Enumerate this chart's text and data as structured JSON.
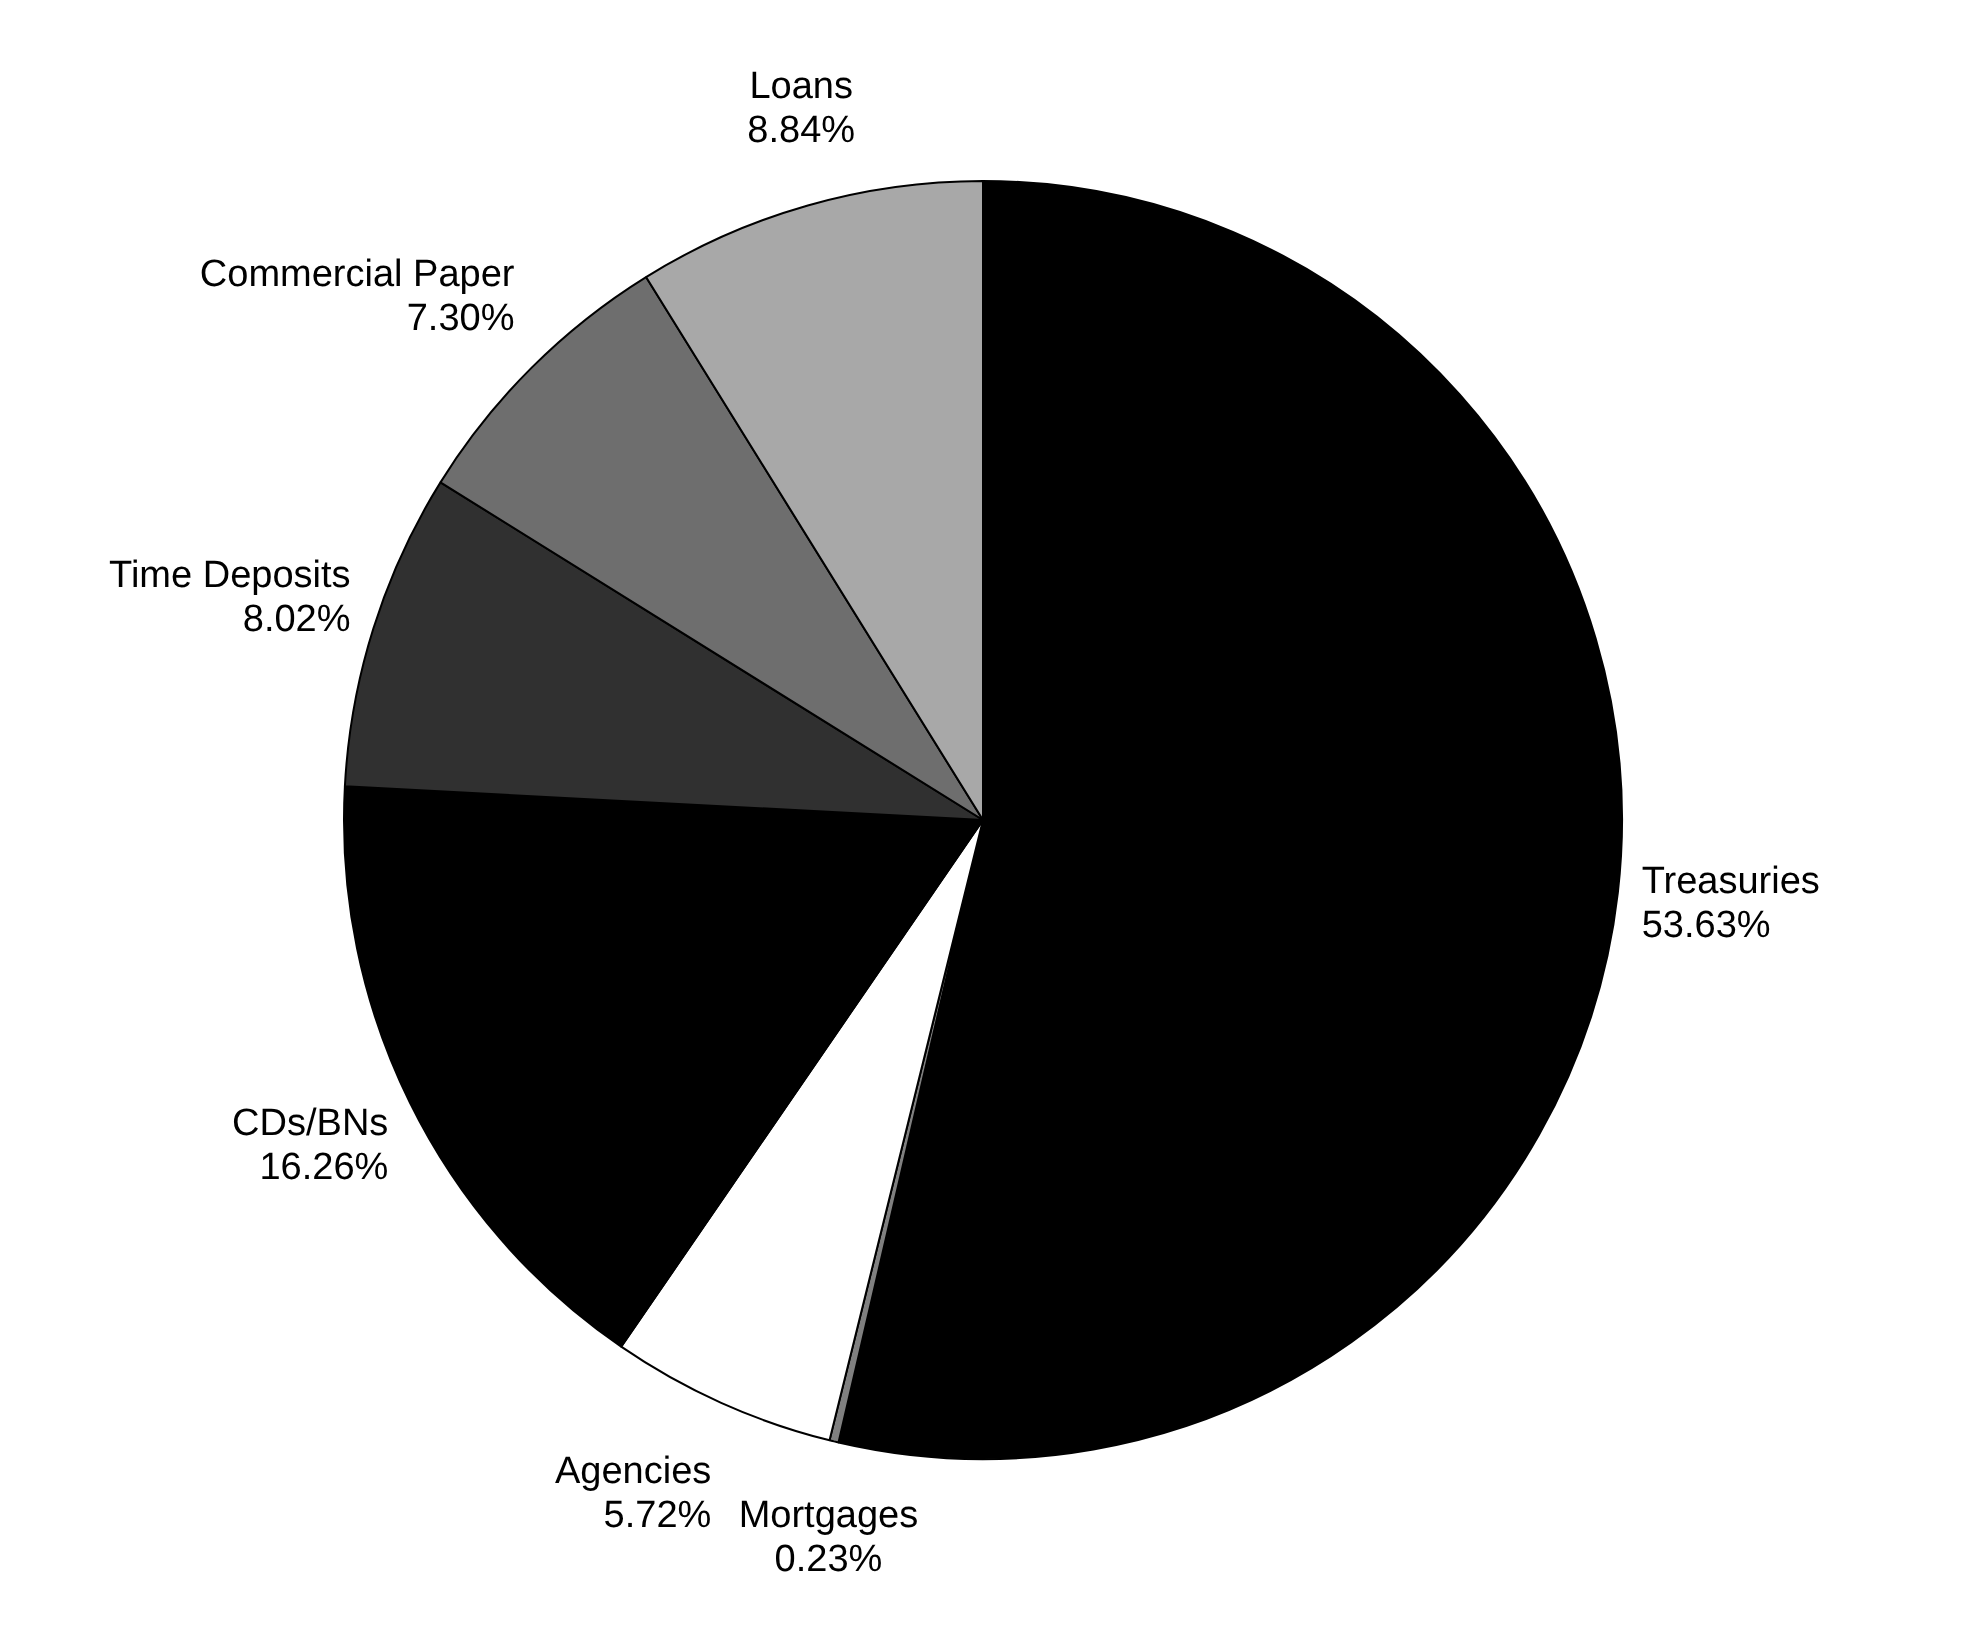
{
  "chart_data": {
    "type": "pie",
    "categories": [
      "Treasuries",
      "Mortgages",
      "Agencies",
      "CDs/BNs",
      "Time Deposits",
      "Commercial Paper",
      "Loans"
    ],
    "values": [
      53.63,
      0.23,
      5.72,
      16.26,
      8.02,
      7.3,
      8.84
    ],
    "colors": [
      "#000000",
      "#808080",
      "#ffffff",
      "#000000",
      "#303030",
      "#6e6e6e",
      "#a8a8a8"
    ],
    "value_labels": [
      "53.63%",
      "0.23%",
      "5.72%",
      "16.26%",
      "8.02%",
      "7.30%",
      "8.84%"
    ],
    "legend": false
  }
}
